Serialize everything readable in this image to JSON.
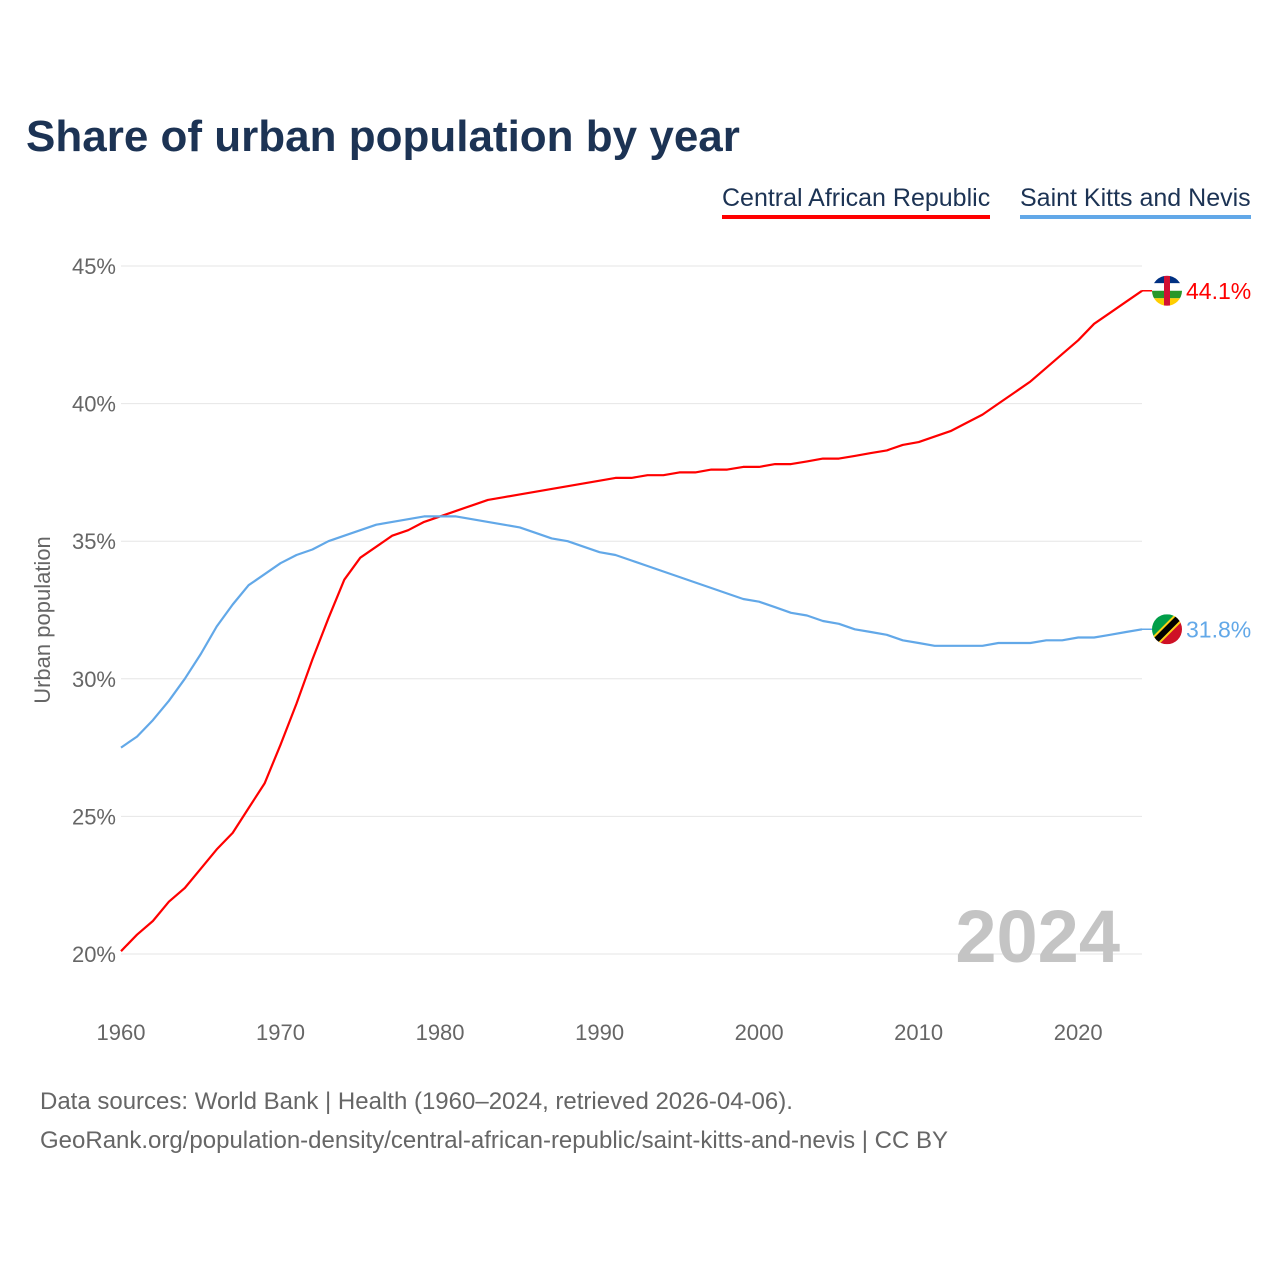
{
  "chart_data": {
    "type": "line",
    "title": "Share of urban population by year",
    "xlabel": "",
    "ylabel": "Urban population",
    "xlim": [
      1960,
      2024
    ],
    "ylim": [
      20,
      45
    ],
    "yticks": [
      "20%",
      "25%",
      "30%",
      "35%",
      "40%",
      "45%"
    ],
    "ytick_values": [
      20,
      25,
      30,
      35,
      40,
      45
    ],
    "xticks": [
      "1960",
      "1970",
      "1980",
      "1990",
      "2000",
      "2010",
      "2020"
    ],
    "xtick_values": [
      1960,
      1970,
      1980,
      1990,
      2000,
      2010,
      2020
    ],
    "year_label": "2024",
    "legend_position": "top-right",
    "x_start": 1960,
    "series": [
      {
        "name": "Central African Republic",
        "color": "#ff0000",
        "end_label": "44.1%",
        "values": [
          20.1,
          20.7,
          21.2,
          21.9,
          22.4,
          23.1,
          23.8,
          24.4,
          25.3,
          26.2,
          27.6,
          29.1,
          30.7,
          32.2,
          33.6,
          34.4,
          34.8,
          35.2,
          35.4,
          35.7,
          35.9,
          36.1,
          36.3,
          36.5,
          36.6,
          36.7,
          36.8,
          36.9,
          37.0,
          37.1,
          37.2,
          37.3,
          37.3,
          37.4,
          37.4,
          37.5,
          37.5,
          37.6,
          37.6,
          37.7,
          37.7,
          37.8,
          37.8,
          37.9,
          38.0,
          38.0,
          38.1,
          38.2,
          38.3,
          38.5,
          38.6,
          38.8,
          39.0,
          39.3,
          39.6,
          40.0,
          40.4,
          40.8,
          41.3,
          41.8,
          42.3,
          42.9,
          43.3,
          43.7,
          44.1
        ]
      },
      {
        "name": "Saint Kitts and Nevis",
        "color": "#62a8e8",
        "end_label": "31.8%",
        "values": [
          27.5,
          27.9,
          28.5,
          29.2,
          30.0,
          30.9,
          31.9,
          32.7,
          33.4,
          33.8,
          34.2,
          34.5,
          34.7,
          35.0,
          35.2,
          35.4,
          35.6,
          35.7,
          35.8,
          35.9,
          35.9,
          35.9,
          35.8,
          35.7,
          35.6,
          35.5,
          35.3,
          35.1,
          35.0,
          34.8,
          34.6,
          34.5,
          34.3,
          34.1,
          33.9,
          33.7,
          33.5,
          33.3,
          33.1,
          32.9,
          32.8,
          32.6,
          32.4,
          32.3,
          32.1,
          32.0,
          31.8,
          31.7,
          31.6,
          31.4,
          31.3,
          31.2,
          31.2,
          31.2,
          31.2,
          31.3,
          31.3,
          31.3,
          31.4,
          31.4,
          31.5,
          31.5,
          31.6,
          31.7,
          31.8
        ]
      }
    ]
  },
  "footer": {
    "line1": "Data sources: World Bank | Health (1960–2024, retrieved 2026-04-06).",
    "line2": "GeoRank.org/population-density/central-african-republic/saint-kitts-and-nevis | CC BY"
  }
}
